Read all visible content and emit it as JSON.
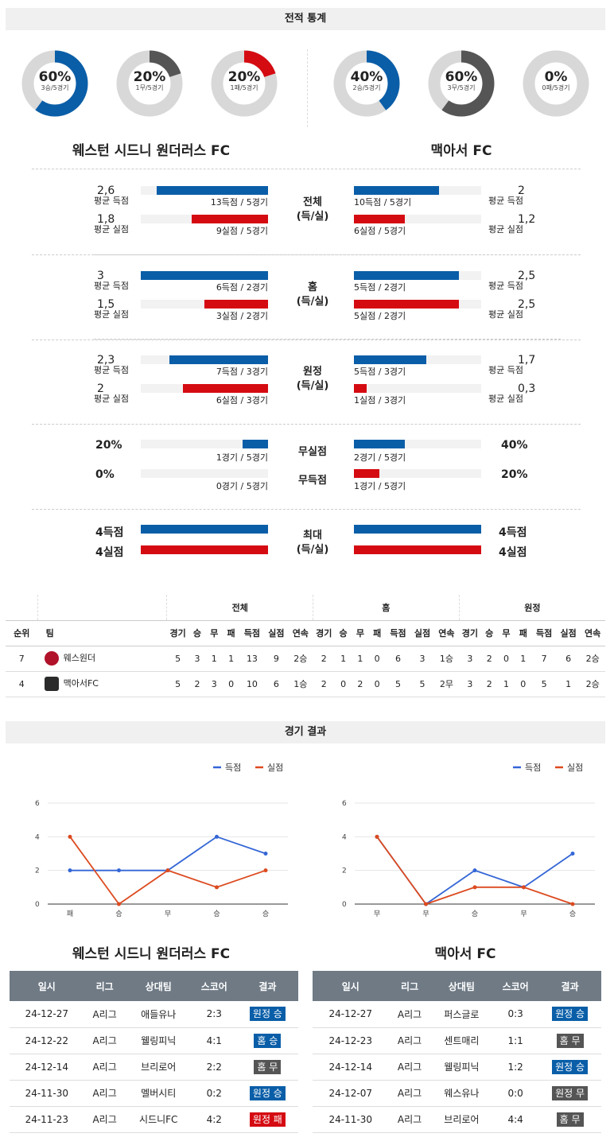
{
  "section1_title": "전적 통계",
  "section2_title": "경기 결과",
  "colors": {
    "blue": "#0a5ea8",
    "red": "#d50b12",
    "gray": "#555555",
    "donut_track": "#d8d8d8"
  },
  "donuts": [
    {
      "pct": "60%",
      "sub": "3승/5경기",
      "value": 0.6,
      "color": "#0a5ea8"
    },
    {
      "pct": "20%",
      "sub": "1무/5경기",
      "value": 0.2,
      "color": "#555555"
    },
    {
      "pct": "20%",
      "sub": "1패/5경기",
      "value": 0.2,
      "color": "#d50b12"
    },
    {
      "pct": "40%",
      "sub": "2승/5경기",
      "value": 0.4,
      "color": "#0a5ea8"
    },
    {
      "pct": "60%",
      "sub": "3무/5경기",
      "value": 0.6,
      "color": "#555555"
    },
    {
      "pct": "0%",
      "sub": "0패/5경기",
      "value": 0.0,
      "color": "#d50b12"
    }
  ],
  "team_home": "웨스턴 시드니 원더러스 FC",
  "team_away": "맥아서 FC",
  "stats": {
    "total": {
      "label1": "전체",
      "label2": "(득/실)",
      "home_gf": "2,6",
      "home_gf_lbl": "평균 득점",
      "home_gf_cap": "13득점 / 5경기",
      "home_gf_frac": 0.875,
      "home_ga": "1,8",
      "home_ga_lbl": "평균 실점",
      "home_ga_cap": "9실점 / 5경기",
      "home_ga_frac": 0.6,
      "away_gf": "2",
      "away_gf_lbl": "평균 득점",
      "away_gf_cap": "10득점 / 5경기",
      "away_gf_frac": 0.67,
      "away_ga": "1,2",
      "away_ga_lbl": "평균 실점",
      "away_ga_cap": "6실점 / 5경기",
      "away_ga_frac": 0.4
    },
    "home": {
      "label1": "홈",
      "label2": "(득/실)",
      "home_gf": "3",
      "home_gf_lbl": "평균 득점",
      "home_gf_cap": "6득점 / 2경기",
      "home_gf_frac": 1.0,
      "home_ga": "1,5",
      "home_ga_lbl": "평균 실점",
      "home_ga_cap": "3실점 / 2경기",
      "home_ga_frac": 0.5,
      "away_gf": "2,5",
      "away_gf_lbl": "평균 득점",
      "away_gf_cap": "5득점 / 2경기",
      "away_gf_frac": 0.825,
      "away_ga": "2,5",
      "away_ga_lbl": "평균 실점",
      "away_ga_cap": "5실점 / 2경기",
      "away_ga_frac": 0.825
    },
    "away": {
      "label1": "원정",
      "label2": "(득/실)",
      "home_gf": "2,3",
      "home_gf_lbl": "평균 득점",
      "home_gf_cap": "7득점 / 3경기",
      "home_gf_frac": 0.775,
      "home_ga": "2",
      "home_ga_lbl": "평균 실점",
      "home_ga_cap": "6실점 / 3경기",
      "home_ga_frac": 0.67,
      "away_gf": "1,7",
      "away_gf_lbl": "평균 득점",
      "away_gf_cap": "5득점 / 3경기",
      "away_gf_frac": 0.57,
      "away_ga": "0,3",
      "away_ga_lbl": "평균 실점",
      "away_ga_cap": "1실점 / 3경기",
      "away_ga_frac": 0.1
    }
  },
  "clean": {
    "label_cs": "무실점",
    "label_fts": "무득점",
    "home_cs": "20%",
    "home_cs_cap": "1경기 / 5경기",
    "home_cs_frac": 0.2,
    "home_fts": "0%",
    "home_fts_cap": "0경기 / 5경기",
    "home_fts_frac": 0.0,
    "away_cs": "40%",
    "away_cs_cap": "2경기 / 5경기",
    "away_cs_frac": 0.4,
    "away_fts": "20%",
    "away_fts_cap": "1경기 / 5경기",
    "away_fts_frac": 0.2
  },
  "max": {
    "label1": "최대",
    "label2": "(득/실)",
    "home_gf": "4득점",
    "home_ga": "4실점",
    "away_gf": "4득점",
    "away_ga": "4실점"
  },
  "standings": {
    "groups": [
      "전체",
      "홈",
      "원정"
    ],
    "cols_fixed": [
      "순위",
      "팀"
    ],
    "cols": [
      "경기",
      "승",
      "무",
      "패",
      "득점",
      "실점",
      "연속"
    ],
    "rows": [
      {
        "rank": "7",
        "team": "웨스원더",
        "crest": "#b0122a",
        "total": [
          "5",
          "3",
          "1",
          "1",
          "13",
          "9",
          "2승"
        ],
        "home": [
          "2",
          "1",
          "1",
          "0",
          "6",
          "3",
          "1승"
        ],
        "away": [
          "3",
          "2",
          "0",
          "1",
          "7",
          "6",
          "2승"
        ]
      },
      {
        "rank": "4",
        "team": "맥아서FC",
        "crest": "#2b2b2b",
        "total": [
          "5",
          "2",
          "3",
          "0",
          "10",
          "6",
          "1승"
        ],
        "home": [
          "2",
          "0",
          "2",
          "0",
          "5",
          "5",
          "2무"
        ],
        "away": [
          "3",
          "2",
          "1",
          "0",
          "5",
          "1",
          "2승"
        ]
      }
    ]
  },
  "legend": {
    "scored": "득점",
    "conceded": "실점"
  },
  "chart_data": [
    {
      "type": "line",
      "title": "",
      "categories": [
        "패",
        "승",
        "무",
        "승",
        "승"
      ],
      "ylim": [
        0,
        6
      ],
      "yticks": [
        0,
        2,
        4,
        6
      ],
      "series": [
        {
          "name": "득점",
          "values": [
            2,
            2,
            2,
            4,
            3
          ],
          "color": "#3466d6"
        },
        {
          "name": "실점",
          "values": [
            4,
            0,
            2,
            1,
            2
          ],
          "color": "#dc4a1f"
        }
      ]
    },
    {
      "type": "line",
      "title": "",
      "categories": [
        "무",
        "무",
        "승",
        "무",
        "승"
      ],
      "ylim": [
        0,
        6
      ],
      "yticks": [
        0,
        2,
        4,
        6
      ],
      "series": [
        {
          "name": "득점",
          "values": [
            4,
            0,
            2,
            1,
            3
          ],
          "color": "#3466d6"
        },
        {
          "name": "실점",
          "values": [
            4,
            0,
            1,
            1,
            0
          ],
          "color": "#dc4a1f"
        }
      ]
    }
  ],
  "results_header": [
    "일시",
    "리그",
    "상대팀",
    "스코어",
    "결과"
  ],
  "results_home": [
    {
      "date": "24-12-27",
      "league": "A리그",
      "opp": "애들유나",
      "score": "2:3",
      "result": "원정 승",
      "kind": "blue"
    },
    {
      "date": "24-12-22",
      "league": "A리그",
      "opp": "웰링피닉",
      "score": "4:1",
      "result": "홈 승",
      "kind": "blue"
    },
    {
      "date": "24-12-14",
      "league": "A리그",
      "opp": "브리로어",
      "score": "2:2",
      "result": "홈 무",
      "kind": "gray"
    },
    {
      "date": "24-11-30",
      "league": "A리그",
      "opp": "멜버시티",
      "score": "0:2",
      "result": "원정 승",
      "kind": "blue"
    },
    {
      "date": "24-11-23",
      "league": "A리그",
      "opp": "시드니FC",
      "score": "4:2",
      "result": "원정 패",
      "kind": "red"
    }
  ],
  "results_away": [
    {
      "date": "24-12-27",
      "league": "A리그",
      "opp": "퍼스글로",
      "score": "0:3",
      "result": "원정 승",
      "kind": "blue"
    },
    {
      "date": "24-12-23",
      "league": "A리그",
      "opp": "센트매리",
      "score": "1:1",
      "result": "홈 무",
      "kind": "gray"
    },
    {
      "date": "24-12-14",
      "league": "A리그",
      "opp": "웰링피닉",
      "score": "1:2",
      "result": "원정 승",
      "kind": "blue"
    },
    {
      "date": "24-12-07",
      "league": "A리그",
      "opp": "웨스유나",
      "score": "0:0",
      "result": "원정 무",
      "kind": "gray"
    },
    {
      "date": "24-11-30",
      "league": "A리그",
      "opp": "브리로어",
      "score": "4:4",
      "result": "홈 무",
      "kind": "gray"
    }
  ]
}
